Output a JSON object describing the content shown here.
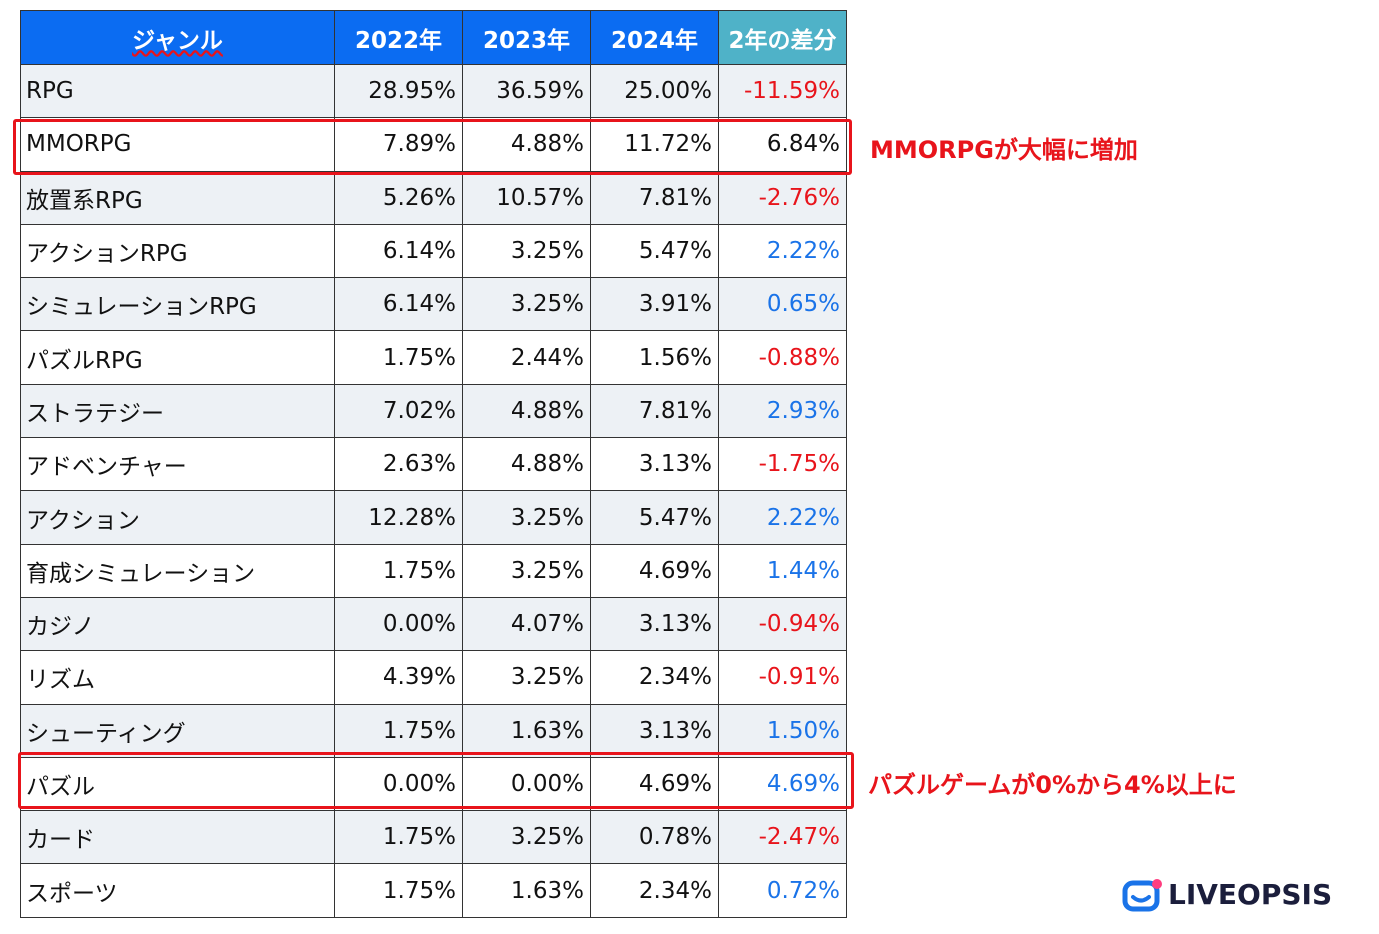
{
  "table": {
    "header": [
      "ジャンル",
      "2022年",
      "2023年",
      "2024年",
      "2年の差分"
    ],
    "rows": [
      [
        "RPG",
        "28.95%",
        "36.59%",
        "25.00%",
        "-11.59%"
      ],
      [
        "MMORPG",
        "7.89%",
        "4.88%",
        "11.72%",
        "6.84%"
      ],
      [
        "放置系RPG",
        "5.26%",
        "10.57%",
        "7.81%",
        "-2.76%"
      ],
      [
        "アクションRPG",
        "6.14%",
        "3.25%",
        "5.47%",
        "2.22%"
      ],
      [
        "シミュレーションRPG",
        "6.14%",
        "3.25%",
        "3.91%",
        "0.65%"
      ],
      [
        "パズルRPG",
        "1.75%",
        "2.44%",
        "1.56%",
        "-0.88%"
      ],
      [
        "ストラテジー",
        "7.02%",
        "4.88%",
        "7.81%",
        "2.93%"
      ],
      [
        "アドベンチャー",
        "2.63%",
        "4.88%",
        "3.13%",
        "-1.75%"
      ],
      [
        "アクション",
        "12.28%",
        "3.25%",
        "5.47%",
        "2.22%"
      ],
      [
        "育成シミュレーション",
        "1.75%",
        "3.25%",
        "4.69%",
        "1.44%"
      ],
      [
        "カジノ",
        "0.00%",
        "4.07%",
        "3.13%",
        "-0.94%"
      ],
      [
        "リズム",
        "4.39%",
        "3.25%",
        "2.34%",
        "-0.91%"
      ],
      [
        "シューティング",
        "1.75%",
        "1.63%",
        "3.13%",
        "1.50%"
      ],
      [
        "パズル",
        "0.00%",
        "0.00%",
        "4.69%",
        "4.69%"
      ],
      [
        "カード",
        "1.75%",
        "3.25%",
        "0.78%",
        "-2.47%"
      ],
      [
        "スポーツ",
        "1.75%",
        "1.63%",
        "2.34%",
        "0.72%"
      ]
    ],
    "diff_colors": [
      "#e8141b",
      "#111111",
      "#e8141b",
      "#1a73e8",
      "#1a73e8",
      "#e8141b",
      "#1a73e8",
      "#e8141b",
      "#1a73e8",
      "#1a73e8",
      "#e8141b",
      "#e8141b",
      "#1a73e8",
      "#1a73e8",
      "#e8141b",
      "#1a73e8"
    ]
  },
  "annotations": [
    "MMORPGが大幅に増加",
    "パズルゲームが0%から4%以上に"
  ],
  "logo": "LIVEOPSIS"
}
